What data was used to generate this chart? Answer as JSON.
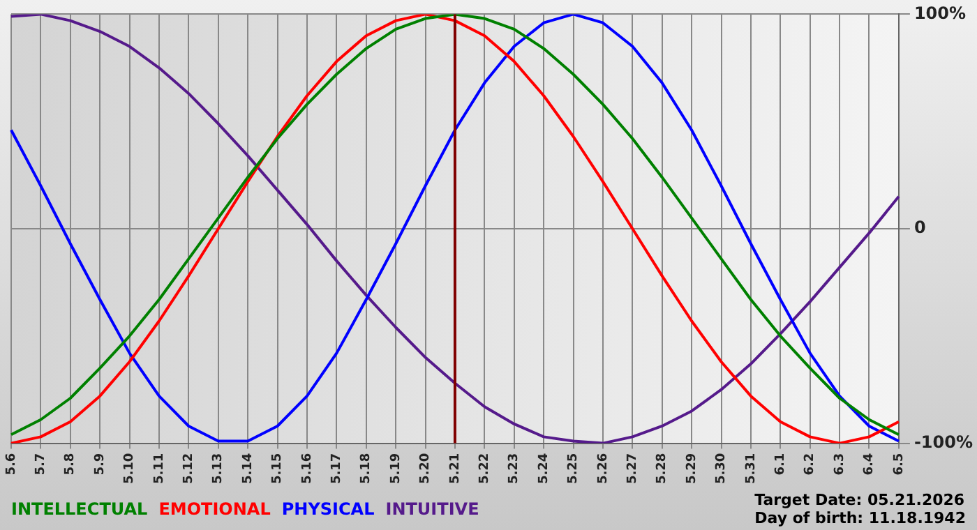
{
  "chart_data": {
    "type": "line",
    "categories": [
      "5.6",
      "5.7",
      "5.8",
      "5.9",
      "5.10",
      "5.11",
      "5.12",
      "5.13",
      "5.14",
      "5.15",
      "5.16",
      "5.17",
      "5.18",
      "5.19",
      "5.20",
      "5.21",
      "5.22",
      "5.23",
      "5.24",
      "5.25",
      "5.26",
      "5.27",
      "5.28",
      "5.29",
      "5.30",
      "5.31",
      "6.1",
      "6.2",
      "6.3",
      "6.4",
      "6.5"
    ],
    "series": [
      {
        "name": "INTELLECTUAL",
        "color": "#008000",
        "values": [
          -96,
          -89,
          -79,
          -65,
          -50,
          -33,
          -14,
          5,
          24,
          42,
          58,
          72,
          84,
          93,
          98,
          100,
          98,
          93,
          84,
          72,
          58,
          42,
          24,
          5,
          -14,
          -33,
          -50,
          -65,
          -79,
          -89,
          -96
        ]
      },
      {
        "name": "EMOTIONAL",
        "color": "#ff0000",
        "values": [
          -100,
          -97,
          -90,
          -78,
          -62,
          -43,
          -22,
          0,
          22,
          43,
          62,
          78,
          90,
          97,
          100,
          97,
          90,
          78,
          62,
          43,
          22,
          0,
          -22,
          -43,
          -62,
          -78,
          -90,
          -97,
          -100,
          -97,
          -90
        ]
      },
      {
        "name": "PHYSICAL",
        "color": "#0000ff",
        "values": [
          46,
          20,
          -7,
          -33,
          -58,
          -78,
          -92,
          -99,
          -99,
          -92,
          -78,
          -58,
          -33,
          -7,
          20,
          46,
          68,
          85,
          96,
          100,
          96,
          85,
          68,
          46,
          20,
          -7,
          -33,
          -58,
          -78,
          -92,
          -99
        ]
      },
      {
        "name": "INTUITIVE",
        "color": "#551a8b",
        "values": [
          99,
          100,
          97,
          92,
          85,
          75,
          63,
          49,
          34,
          18,
          2,
          -15,
          -31,
          -46,
          -60,
          -72,
          -83,
          -91,
          -97,
          -99,
          -100,
          -97,
          -92,
          -85,
          -75,
          -63,
          -49,
          -34,
          -18,
          -2,
          15
        ]
      }
    ],
    "ylim": [
      -100,
      100
    ],
    "yticks": [
      {
        "value": -100,
        "label": "-100%"
      },
      {
        "value": 0,
        "label": "0"
      },
      {
        "value": 100,
        "label": "100%"
      }
    ],
    "grid": true,
    "legend": "bottom",
    "marker": "none",
    "line_style": "solid",
    "ref_lines": [
      {
        "axis": "x",
        "value": "5.21",
        "color": "#800000"
      }
    ],
    "annotations": [
      "Target Date: 05.21.2026",
      "Day of birth: 11.18.1942"
    ]
  }
}
